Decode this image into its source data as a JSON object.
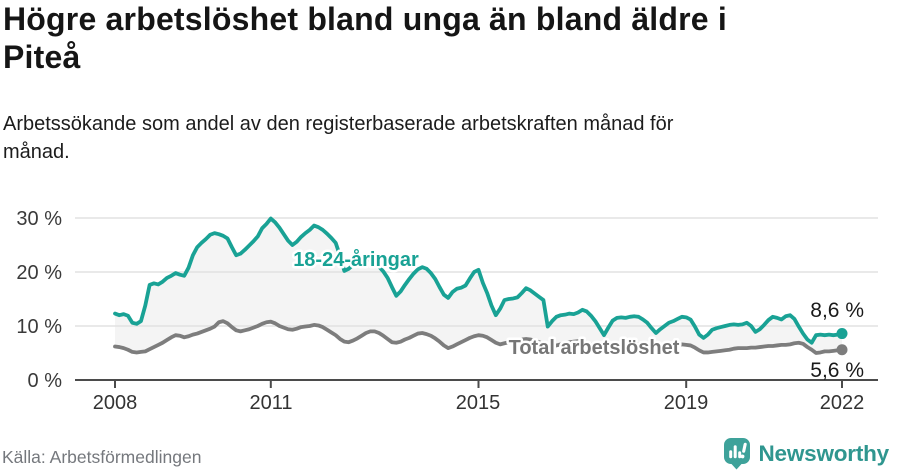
{
  "header": {
    "title_line1": "Högre arbetslöshet bland unga än bland äldre i",
    "title_line2": "Piteå",
    "subtitle_line1": "Arbetssökande som andel av den registerbaserade arbetskraften månad för",
    "subtitle_line2": "månad."
  },
  "chart_data": {
    "type": "line",
    "title": "Högre arbetslöshet bland unga än bland äldre i Piteå",
    "subtitle": "Arbetssökande som andel av den registerbaserade arbetskraften månad för månad.",
    "x_unit": "month",
    "x_range": [
      "2008-01",
      "2022-01"
    ],
    "x_start_year": 2008,
    "x_end_year": 2022,
    "x_tick_years": [
      2008,
      2011,
      2015,
      2019,
      2022
    ],
    "x_tick_labels": [
      "2008",
      "2011",
      "2015",
      "2019",
      "2022"
    ],
    "y_ticks": [
      0,
      10,
      20,
      30
    ],
    "y_tick_labels": [
      "0 %",
      "10 %",
      "20 %",
      "30 %"
    ],
    "ylim": [
      0,
      32
    ],
    "grid": true,
    "legend_position": "inline-labels",
    "band_fill_between_series": true,
    "series": [
      {
        "name": "18-24-åringar",
        "color": "#19a295",
        "end_label": "8,6 %",
        "end_value": 8.6,
        "values": [
          12.3,
          12.0,
          12.2,
          11.9,
          10.6,
          10.4,
          10.9,
          13.8,
          17.6,
          17.9,
          17.7,
          18.2,
          18.9,
          19.3,
          19.8,
          19.5,
          19.3,
          20.8,
          23.1,
          24.6,
          25.4,
          26.1,
          26.9,
          27.2,
          27.0,
          26.7,
          26.2,
          24.6,
          23.1,
          23.4,
          24.1,
          24.9,
          25.7,
          26.6,
          28.1,
          28.9,
          29.9,
          29.2,
          28.2,
          27.0,
          25.8,
          25.0,
          25.6,
          26.5,
          27.2,
          27.8,
          28.6,
          28.3,
          27.8,
          27.1,
          26.3,
          25.4,
          23.0,
          20.2,
          20.6,
          21.3,
          21.9,
          22.3,
          22.5,
          22.2,
          21.8,
          21.0,
          20.1,
          18.9,
          17.2,
          15.6,
          16.4,
          17.6,
          18.7,
          19.7,
          20.5,
          20.9,
          20.6,
          19.8,
          18.7,
          17.2,
          15.8,
          15.2,
          16.3,
          16.9,
          17.1,
          17.5,
          18.8,
          20.0,
          20.4,
          18.0,
          16.1,
          13.8,
          12.0,
          13.2,
          14.8,
          15.0,
          15.1,
          15.3,
          16.1,
          17.0,
          16.6,
          16.0,
          15.4,
          14.8,
          9.9,
          10.9,
          11.7,
          12.0,
          12.1,
          12.3,
          12.2,
          12.5,
          13.0,
          12.7,
          11.9,
          10.9,
          9.6,
          8.3,
          9.7,
          11.0,
          11.5,
          11.6,
          11.5,
          11.7,
          11.8,
          11.7,
          11.2,
          10.6,
          9.6,
          8.7,
          9.4,
          10.0,
          10.6,
          10.9,
          11.3,
          11.7,
          11.6,
          11.2,
          9.9,
          8.4,
          7.8,
          8.4,
          9.3,
          9.6,
          9.8,
          10.0,
          10.2,
          10.3,
          10.2,
          10.3,
          10.6,
          10.0,
          8.9,
          9.4,
          10.2,
          11.1,
          11.7,
          11.5,
          11.2,
          11.8,
          12.0,
          11.3,
          9.9,
          8.6,
          7.5,
          6.9,
          8.3,
          8.4,
          8.3,
          8.4,
          8.3,
          8.4,
          8.6
        ]
      },
      {
        "name": "Total arbetslöshet",
        "color": "#7d7d7d",
        "end_label": "5,6 %",
        "end_value": 5.6,
        "values": [
          6.2,
          6.1,
          5.9,
          5.6,
          5.2,
          5.1,
          5.2,
          5.3,
          5.7,
          6.1,
          6.5,
          6.9,
          7.4,
          7.9,
          8.3,
          8.2,
          7.9,
          8.1,
          8.4,
          8.6,
          8.9,
          9.2,
          9.5,
          9.9,
          10.7,
          10.9,
          10.5,
          9.8,
          9.2,
          9.0,
          9.2,
          9.4,
          9.7,
          10.0,
          10.4,
          10.7,
          10.8,
          10.5,
          10.0,
          9.7,
          9.4,
          9.3,
          9.5,
          9.8,
          9.9,
          10.0,
          10.2,
          10.1,
          9.8,
          9.3,
          8.8,
          8.3,
          7.6,
          7.1,
          7.0,
          7.3,
          7.7,
          8.2,
          8.7,
          9.0,
          9.0,
          8.7,
          8.2,
          7.6,
          7.0,
          6.9,
          7.1,
          7.5,
          7.8,
          8.2,
          8.6,
          8.7,
          8.5,
          8.2,
          7.7,
          7.1,
          6.4,
          5.9,
          6.2,
          6.6,
          7.0,
          7.4,
          7.8,
          8.1,
          8.3,
          8.2,
          7.9,
          7.4,
          6.9,
          6.6,
          6.8,
          7.0,
          7.2,
          7.3,
          7.5,
          7.6,
          7.5,
          7.3,
          7.0,
          6.7,
          6.3,
          6.2,
          6.4,
          6.6,
          6.8,
          7.0,
          7.1,
          7.2,
          7.1,
          6.9,
          6.6,
          6.3,
          6.0,
          5.9,
          6.1,
          6.3,
          6.5,
          6.6,
          6.7,
          6.8,
          6.7,
          6.6,
          6.4,
          6.1,
          5.9,
          5.8,
          5.9,
          6.1,
          6.2,
          6.4,
          6.5,
          6.6,
          6.5,
          6.4,
          6.0,
          5.5,
          5.1,
          5.1,
          5.2,
          5.3,
          5.4,
          5.5,
          5.6,
          5.8,
          5.9,
          5.9,
          5.9,
          6.0,
          6.0,
          6.1,
          6.2,
          6.3,
          6.3,
          6.4,
          6.5,
          6.5,
          6.6,
          6.8,
          6.9,
          6.7,
          6.1,
          5.6,
          5.0,
          5.1,
          5.3,
          5.3,
          5.4,
          5.5,
          5.6
        ]
      }
    ],
    "colors": {
      "grid": "#e2e2e2",
      "axis": "#4b4b4b",
      "band_fill": "#f4f4f4",
      "tick_text": "#333333"
    }
  },
  "footer": {
    "source": "Källa: Arbetsförmedlingen",
    "brand": "Newsworthy"
  }
}
